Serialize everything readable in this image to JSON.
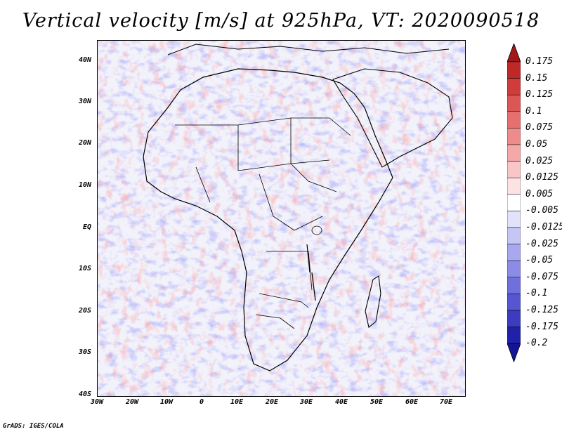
{
  "title": "Vertical velocity [m/s] at 925hPa, VT: 2020090518",
  "lat_labels": [
    "40N",
    "30N",
    "20N",
    "10N",
    "EQ",
    "10S",
    "20S",
    "30S",
    "40S"
  ],
  "lon_labels": [
    "30W",
    "20W",
    "10W",
    "0",
    "10E",
    "20E",
    "30E",
    "40E",
    "50E",
    "60E",
    "70E"
  ],
  "colorbar": {
    "levels": [
      "0.175",
      "0.15",
      "0.125",
      "0.1",
      "0.075",
      "0.05",
      "0.025",
      "0.0125",
      "0.005",
      "-0.005",
      "-0.0125",
      "-0.025",
      "-0.05",
      "-0.075",
      "-0.1",
      "-0.125",
      "-0.175",
      "-0.2"
    ],
    "colors": [
      "#a01818",
      "#c02828",
      "#d03c3c",
      "#dc5656",
      "#e67070",
      "#ee8c8c",
      "#f4a8a8",
      "#f8c6c6",
      "#fce2e2",
      "#ffffff",
      "#e2e2fa",
      "#c6c6f4",
      "#a8a8ee",
      "#8c8ce6",
      "#7070dc",
      "#5656d0",
      "#3c3cc0",
      "#2020a8",
      "#141496"
    ]
  },
  "credit": "GrADS: IGES/COLA"
}
